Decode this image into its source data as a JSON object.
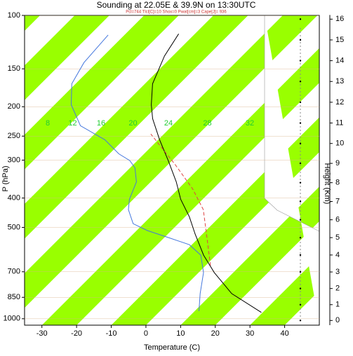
{
  "chart_data": {
    "type": "skewt",
    "title": "Sounding at 22.05E & 39.9N on 13:30UTC",
    "subtitle": "Pcl=744 Tlcl[C]=10 Shox=0 Pwat[cm]=3 Cape[J]= 936",
    "xlabel": "Temperature (C)",
    "ylabel": "P (hPa)",
    "y2label": "Height (Km)",
    "xlim": [
      -35,
      50
    ],
    "xticks": [
      -30,
      -20,
      -10,
      0,
      10,
      20,
      30,
      40
    ],
    "ylim": [
      1050,
      100
    ],
    "yticks": [
      100,
      150,
      200,
      250,
      300,
      400,
      500,
      700,
      850,
      1000
    ],
    "log_y": true,
    "y2lim": [
      -0.3,
      16.2
    ],
    "y2ticks": [
      0,
      1,
      2,
      3,
      4,
      5,
      6,
      7,
      8,
      9,
      10,
      11,
      12,
      13,
      14,
      15,
      16
    ],
    "band_color": "#99ff00",
    "band_labels": [
      "8",
      "12",
      "16",
      "20",
      "24",
      "28",
      "32"
    ],
    "band_label_color": "#22cc33",
    "series": [
      {
        "color": "#000000",
        "dash": false,
        "y": [
          953,
          826,
          704,
          617,
          526,
          461,
          404,
          354,
          301,
          257,
          219,
          197,
          168,
          136,
          115
        ],
        "x": [
          29.6,
          15.6,
          4.5,
          -3.6,
          -12.1,
          -18.8,
          -26.3,
          -32.6,
          -41.1,
          -49.6,
          -57.7,
          -62.1,
          -67.8,
          -72.4,
          -74.7
        ]
      },
      {
        "color": "#4477dd",
        "dash": false,
        "y": [
          943,
          826,
          704,
          617,
          570,
          540,
          512,
          486,
          437,
          404,
          354,
          318,
          301,
          286,
          257,
          231,
          197,
          168,
          143,
          116
        ],
        "x": [
          11.2,
          6.5,
          1.4,
          -4.4,
          -10.7,
          -18.8,
          -26.9,
          -33,
          -38.4,
          -41.1,
          -44.1,
          -48.6,
          -52.2,
          -57.3,
          -65.4,
          -76.5,
          -85.2,
          -91.1,
          -93.7,
          -94.7
        ]
      },
      {
        "color": "#dd4444",
        "dash": true,
        "y": [
          668,
          540,
          437,
          373,
          310,
          246
        ],
        "x": [
          1.4,
          -7.7,
          -16.8,
          -25.9,
          -38,
          -53.8
        ]
      }
    ]
  }
}
